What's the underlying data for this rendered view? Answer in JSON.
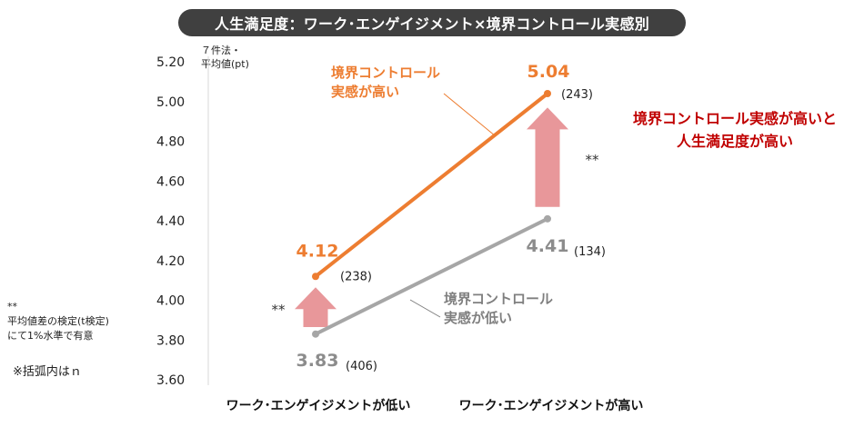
{
  "header": {
    "title": "人生満足度：ワーク･エンゲイジメント×境界コントロール実感別",
    "ylabel_line1": "７件法・",
    "ylabel_line2": "平均値(pt)",
    "note_mark": "**",
    "note_line1": "平均値差の検定(t検定)",
    "note_line2": "にて1%水準で有意",
    "note_n": "※括弧内はｎ",
    "callout_line1": "境界コントロール実感が高いと",
    "callout_line2": "人生満足度が高い"
  },
  "chart_data": {
    "type": "line",
    "title": "人生満足度：ワーク･エンゲイジメント×境界コントロール実感別",
    "ylabel": "７件法・平均値(pt)",
    "xlabel": "",
    "categories": [
      "ワーク･エンゲイジメントが低い",
      "ワーク･エンゲイジメントが高い"
    ],
    "ylim": [
      3.6,
      5.2
    ],
    "yticks": [
      "5.20",
      "5.00",
      "4.80",
      "4.60",
      "4.40",
      "4.20",
      "4.00",
      "3.80",
      "3.60"
    ],
    "series": [
      {
        "name_line1": "境界コントロール",
        "name_line2": "実感が高い",
        "values": [
          4.12,
          5.04
        ],
        "value_labels": [
          "4.12",
          "5.04"
        ],
        "n_labels": [
          "(238)",
          "(243)"
        ],
        "color": "#ed7d31"
      },
      {
        "name_line1": "境界コントロール",
        "name_line2": "実感が低い",
        "values": [
          3.83,
          4.41
        ],
        "value_labels": [
          "3.83",
          "4.41"
        ],
        "n_labels": [
          "(406)",
          "(134)"
        ],
        "color": "#a6a6a6"
      }
    ],
    "significance": [
      "**",
      "**"
    ],
    "arrow_color": "#e8979a"
  }
}
